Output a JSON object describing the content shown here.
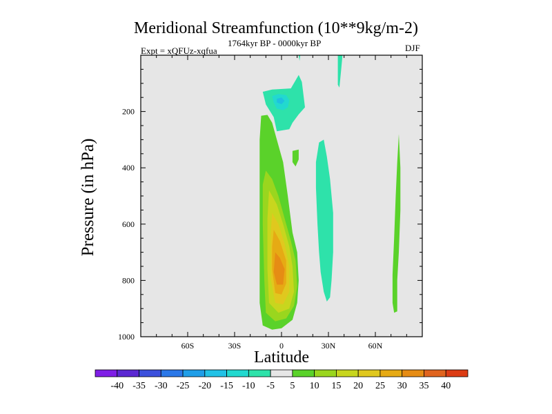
{
  "title": "Meridional Streamfunction (10**9kg/m-2)",
  "experiment": "Expt = xQFUz-xqfua",
  "period": "1764kyr BP - 0000kyr BP",
  "season": "DJF",
  "chart_data": {
    "type": "contour",
    "xlabel": "Latitude",
    "ylabel": "Pressure (in hPa)",
    "x_range": [
      -90,
      90
    ],
    "y_range": [
      0,
      1000
    ],
    "y_inverted": true,
    "x_ticks": [
      {
        "value": -60,
        "label": "60S"
      },
      {
        "value": -30,
        "label": "30S"
      },
      {
        "value": 0,
        "label": "0"
      },
      {
        "value": 30,
        "label": "30N"
      },
      {
        "value": 60,
        "label": "60N"
      }
    ],
    "y_ticks": [
      {
        "value": 200,
        "label": "200"
      },
      {
        "value": 400,
        "label": "400"
      },
      {
        "value": 600,
        "label": "600"
      },
      {
        "value": 800,
        "label": "800"
      },
      {
        "value": 1000,
        "label": "1000"
      }
    ],
    "colorbar": {
      "colors": [
        "#7f1ee6",
        "#5b28d2",
        "#3c50dc",
        "#2b78e8",
        "#1f9ee8",
        "#22c2e6",
        "#22d9cf",
        "#2ee2aa",
        "#e6e6e6",
        "#5ad22a",
        "#9ad61e",
        "#c8d61e",
        "#e0c81e",
        "#e6aa14",
        "#e68c14",
        "#e0641e",
        "#dc3c14"
      ],
      "labels": [
        "-40",
        "-35",
        "-30",
        "-25",
        "-20",
        "-15",
        "-10",
        "-5",
        "5",
        "10",
        "15",
        "20",
        "25",
        "30",
        "35",
        "40"
      ]
    },
    "regions": [
      {
        "level": 5,
        "color": "#5ad22a",
        "points": [
          [
            -13,
            215
          ],
          [
            -9,
            212
          ],
          [
            -6,
            240
          ],
          [
            -3,
            300
          ],
          [
            1,
            380
          ],
          [
            4,
            500
          ],
          [
            7,
            630
          ],
          [
            10,
            700
          ],
          [
            11,
            800
          ],
          [
            10,
            880
          ],
          [
            7,
            940
          ],
          [
            0,
            970
          ],
          [
            -6,
            975
          ],
          [
            -12,
            960
          ],
          [
            -14,
            880
          ],
          [
            -14,
            700
          ],
          [
            -14,
            500
          ],
          [
            -14,
            300
          ]
        ]
      },
      {
        "level": 10,
        "color": "#9ad61e",
        "points": [
          [
            -10,
            410
          ],
          [
            -6,
            440
          ],
          [
            -2,
            500
          ],
          [
            2,
            580
          ],
          [
            6,
            660
          ],
          [
            9,
            730
          ],
          [
            10,
            820
          ],
          [
            8,
            890
          ],
          [
            3,
            935
          ],
          [
            -4,
            945
          ],
          [
            -10,
            915
          ],
          [
            -11,
            800
          ],
          [
            -12,
            600
          ],
          [
            -12,
            460
          ]
        ]
      },
      {
        "level": 15,
        "color": "#c8d61e",
        "points": [
          [
            -8,
            480
          ],
          [
            -3,
            530
          ],
          [
            1,
            600
          ],
          [
            5,
            680
          ],
          [
            7,
            750
          ],
          [
            8,
            840
          ],
          [
            5,
            900
          ],
          [
            -2,
            915
          ],
          [
            -8,
            880
          ],
          [
            -9,
            760
          ],
          [
            -9,
            580
          ]
        ]
      },
      {
        "level": 20,
        "color": "#e0c81e",
        "points": [
          [
            -6,
            560
          ],
          [
            -2,
            600
          ],
          [
            2,
            670
          ],
          [
            5,
            750
          ],
          [
            5,
            840
          ],
          [
            1,
            885
          ],
          [
            -4,
            880
          ],
          [
            -7,
            790
          ],
          [
            -7,
            640
          ]
        ]
      },
      {
        "level": 25,
        "color": "#e6aa14",
        "points": [
          [
            -5,
            620
          ],
          [
            -1,
            660
          ],
          [
            3,
            730
          ],
          [
            3,
            810
          ],
          [
            0,
            850
          ],
          [
            -4,
            845
          ],
          [
            -6,
            760
          ],
          [
            -6,
            680
          ]
        ]
      },
      {
        "level": 30,
        "color": "#e68c14",
        "points": [
          [
            -4,
            700
          ],
          [
            -1,
            720
          ],
          [
            2,
            760
          ],
          [
            1,
            815
          ],
          [
            -3,
            815
          ],
          [
            -5,
            770
          ]
        ]
      },
      {
        "level": -5,
        "color": "#2ee2aa",
        "points": [
          [
            -12,
            130
          ],
          [
            -6,
            122
          ],
          [
            6,
            118
          ],
          [
            11,
            70
          ],
          [
            13,
            95
          ],
          [
            15,
            185
          ],
          [
            11,
            210
          ],
          [
            7,
            240
          ],
          [
            5,
            263
          ],
          [
            -3,
            270
          ],
          [
            -5,
            220
          ],
          [
            -10,
            175
          ]
        ]
      },
      {
        "level": -10,
        "color": "#22d9cf",
        "points": [
          [
            -6,
            145
          ],
          [
            -2,
            138
          ],
          [
            3,
            142
          ],
          [
            5,
            160
          ],
          [
            4,
            185
          ],
          [
            1,
            195
          ],
          [
            -3,
            190
          ],
          [
            -5,
            168
          ]
        ]
      },
      {
        "level": -15,
        "color": "#1fc0e0",
        "points": [
          [
            -3,
            155
          ],
          [
            0,
            150
          ],
          [
            2,
            162
          ],
          [
            0,
            174
          ],
          [
            -3,
            168
          ]
        ]
      },
      {
        "level": -5,
        "color": "#2ee2aa",
        "points": [
          [
            11,
            0
          ],
          [
            12,
            0
          ],
          [
            11.5,
            20
          ]
        ]
      },
      {
        "level": -5,
        "color": "#2ee2aa",
        "points": [
          [
            36,
            0
          ],
          [
            39,
            0
          ],
          [
            38,
            60
          ],
          [
            37,
            115
          ],
          [
            36,
            105
          ],
          [
            36,
            40
          ]
        ]
      },
      {
        "level": 5,
        "color": "#5ad22a",
        "points": [
          [
            7,
            340
          ],
          [
            11,
            335
          ],
          [
            11,
            370
          ],
          [
            9,
            395
          ],
          [
            7,
            380
          ]
        ]
      },
      {
        "level": -5,
        "color": "#2ee2aa",
        "points": [
          [
            24,
            310
          ],
          [
            27,
            300
          ],
          [
            29,
            360
          ],
          [
            31,
            440
          ],
          [
            33,
            560
          ],
          [
            33,
            700
          ],
          [
            32,
            800
          ],
          [
            31,
            860
          ],
          [
            29,
            875
          ],
          [
            27,
            840
          ],
          [
            25,
            770
          ],
          [
            24,
            700
          ],
          [
            23,
            600
          ],
          [
            22,
            470
          ],
          [
            22,
            380
          ]
        ]
      },
      {
        "level": 5,
        "color": "#5ad22a",
        "points": [
          [
            75,
            280
          ],
          [
            76,
            400
          ],
          [
            76,
            550
          ],
          [
            75,
            700
          ],
          [
            74,
            800
          ],
          [
            74,
            910
          ],
          [
            72,
            915
          ],
          [
            71,
            880
          ],
          [
            71,
            780
          ],
          [
            72,
            650
          ],
          [
            73,
            500
          ],
          [
            74,
            380
          ]
        ]
      }
    ]
  }
}
